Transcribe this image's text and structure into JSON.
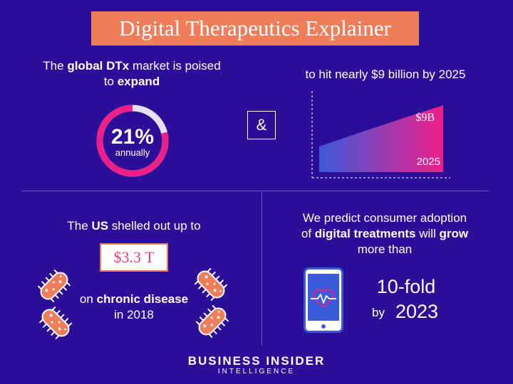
{
  "title": "Digital Therapeutics Explainer",
  "section1": {
    "line1_pre": "The ",
    "line1_bold": "global DTx",
    "line1_post": " market is poised",
    "line2_pre": "to ",
    "line2_bold": "expand",
    "growth_value": "21%",
    "growth_label": "annually",
    "growth_fraction": 0.79
  },
  "ampersand": "&",
  "section2": {
    "text": "to hit nearly $9 billion by 2025"
  },
  "section3": {
    "line1_pre": "The ",
    "line1_bold": "US",
    "line1_post": " shelled out up to",
    "amount": "$3.3 T",
    "line2_pre": "on ",
    "line2_bold": "chronic disease",
    "line3": "in 2018"
  },
  "section4": {
    "line1": "We predict consumer adoption",
    "line2_pre": "of ",
    "line2_bold": "digital treatments",
    "line2_mid": " will ",
    "line2_bold2": "grow",
    "line3": "more than",
    "fold": "10-fold",
    "by": "by",
    "year": "2023"
  },
  "footer": {
    "brand": "BUSINESS INSIDER",
    "sub": "INTELLIGENCE"
  },
  "colors": {
    "background": "#2b0f99",
    "accent_orange": "#f07d5a",
    "accent_pink": "#ef1f8a",
    "accent_blue": "#3a5bd9",
    "ring_track": "#e4e0f5"
  },
  "chart_data": {
    "type": "area",
    "x": [
      "",
      "2025"
    ],
    "values": [
      null,
      9
    ],
    "value_label": "$9B",
    "xlabel": "",
    "ylabel": "",
    "title": ""
  }
}
